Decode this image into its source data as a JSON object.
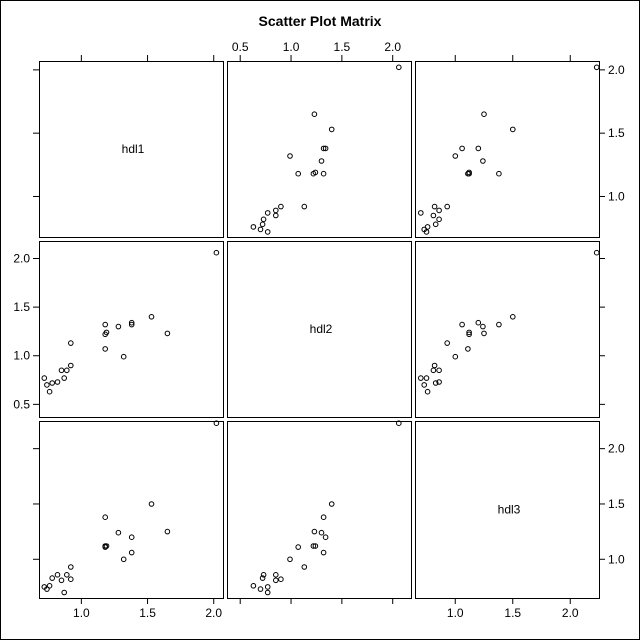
{
  "chart_data": {
    "type": "scatter",
    "title": "Scatter Plot Matrix",
    "variables": [
      "hdl1",
      "hdl2",
      "hdl3"
    ],
    "ticks": {
      "hdl1": [
        1.0,
        1.5,
        2.0
      ],
      "hdl2": [
        0.5,
        1.0,
        1.5,
        2.0
      ],
      "hdl3": [
        1.0,
        1.5,
        2.0
      ]
    },
    "tick_labels": {
      "hdl1": [
        "1.0",
        "1.5",
        "2.0"
      ],
      "hdl2": [
        "0.5",
        "1.0",
        "1.5",
        "2.0"
      ],
      "hdl3": [
        "1.0",
        "1.5",
        "2.0"
      ]
    },
    "ranges": {
      "hdl1": [
        0.68,
        2.07
      ],
      "hdl2": [
        0.37,
        2.18
      ],
      "hdl3": [
        0.65,
        2.25
      ]
    },
    "observations": [
      {
        "hdl1": 0.72,
        "hdl2": 0.77,
        "hdl3": 0.75
      },
      {
        "hdl1": 0.74,
        "hdl2": 0.7,
        "hdl3": 0.73
      },
      {
        "hdl1": 0.76,
        "hdl2": 0.63,
        "hdl3": 0.76
      },
      {
        "hdl1": 0.78,
        "hdl2": 0.72,
        "hdl3": 0.83
      },
      {
        "hdl1": 0.82,
        "hdl2": 0.73,
        "hdl3": 0.86
      },
      {
        "hdl1": 0.85,
        "hdl2": 0.85,
        "hdl3": 0.81
      },
      {
        "hdl1": 0.87,
        "hdl2": 0.77,
        "hdl3": 0.7
      },
      {
        "hdl1": 0.89,
        "hdl2": 0.85,
        "hdl3": 0.86
      },
      {
        "hdl1": 0.92,
        "hdl2": 1.13,
        "hdl3": 0.93
      },
      {
        "hdl1": 0.92,
        "hdl2": 0.9,
        "hdl3": 0.82
      },
      {
        "hdl1": 1.18,
        "hdl2": 1.07,
        "hdl3": 1.11
      },
      {
        "hdl1": 1.18,
        "hdl2": 1.32,
        "hdl3": 1.38
      },
      {
        "hdl1": 1.18,
        "hdl2": 1.22,
        "hdl3": 1.12
      },
      {
        "hdl1": 1.19,
        "hdl2": 1.24,
        "hdl3": 1.12
      },
      {
        "hdl1": 1.28,
        "hdl2": 1.3,
        "hdl3": 1.24
      },
      {
        "hdl1": 1.32,
        "hdl2": 0.99,
        "hdl3": 1.0
      },
      {
        "hdl1": 1.38,
        "hdl2": 1.34,
        "hdl3": 1.2
      },
      {
        "hdl1": 1.38,
        "hdl2": 1.32,
        "hdl3": 1.06
      },
      {
        "hdl1": 1.53,
        "hdl2": 1.4,
        "hdl3": 1.5
      },
      {
        "hdl1": 1.65,
        "hdl2": 1.23,
        "hdl3": 1.25
      },
      {
        "hdl1": 2.02,
        "hdl2": 2.06,
        "hdl3": 2.23
      }
    ],
    "marker": "open-circle",
    "grid": false,
    "legend": "none"
  }
}
